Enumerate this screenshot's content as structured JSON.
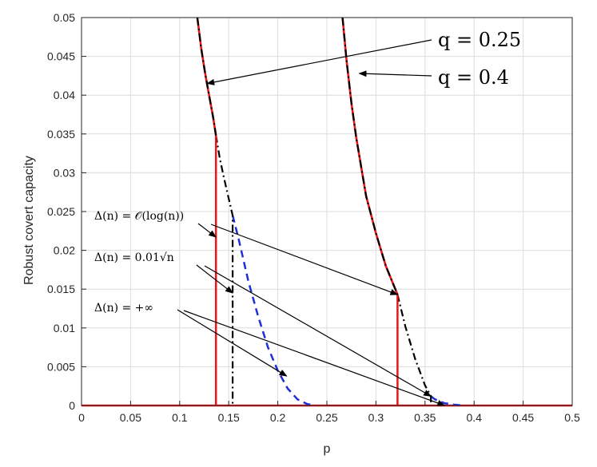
{
  "chart_data": {
    "type": "line",
    "xlabel": "p",
    "ylabel": "Robust covert capacity",
    "xlim": [
      0,
      0.5
    ],
    "ylim": [
      0,
      0.05
    ],
    "grid": true,
    "xticks": [
      "0",
      "0.05",
      "0.1",
      "0.15",
      "0.2",
      "0.25",
      "0.3",
      "0.35",
      "0.4",
      "0.45",
      "0.5"
    ],
    "yticks": [
      "0",
      "0.005",
      "0.01",
      "0.015",
      "0.02",
      "0.025",
      "0.03",
      "0.035",
      "0.04",
      "0.045",
      "0.05"
    ],
    "colors": {
      "red": "#e8171a",
      "black": "#000000",
      "blue": "#1f2fd6",
      "grid": "#dcdcdc",
      "axis": "#262626"
    },
    "series": [
      {
        "values": {
          "common_q025": [
            [
              0.118,
              0.05
            ],
            [
              0.122,
              0.046
            ],
            [
              0.126,
              0.0428
            ],
            [
              0.13,
              0.04
            ],
            [
              0.134,
              0.0372
            ],
            [
              0.137,
              0.0348
            ]
          ],
          "loglog_q025": [
            [
              0.137,
              0.0348
            ],
            [
              0.137,
              0.0
            ]
          ],
          "sqrt_q025": [
            [
              0.137,
              0.0348
            ],
            [
              0.141,
              0.0318
            ],
            [
              0.145,
              0.0294
            ],
            [
              0.149,
              0.0272
            ],
            [
              0.154,
              0.0245
            ],
            [
              0.154,
              0.0
            ]
          ],
          "inf_q025": [
            [
              0.154,
              0.0245
            ],
            [
              0.16,
              0.0215
            ],
            [
              0.17,
              0.016
            ],
            [
              0.18,
              0.0115
            ],
            [
              0.19,
              0.0075
            ],
            [
              0.2,
              0.0045
            ],
            [
              0.21,
              0.0022
            ],
            [
              0.22,
              0.0008
            ],
            [
              0.23,
              0.0002
            ],
            [
              0.238,
              0.0
            ]
          ],
          "common_q04": [
            [
              0.266,
              0.05
            ],
            [
              0.27,
              0.0445
            ],
            [
              0.275,
              0.039
            ],
            [
              0.28,
              0.0345
            ],
            [
              0.29,
              0.027
            ],
            [
              0.3,
              0.0222
            ],
            [
              0.31,
              0.018
            ],
            [
              0.322,
              0.0143
            ]
          ],
          "loglog_q04": [
            [
              0.322,
              0.0143
            ],
            [
              0.322,
              0.0
            ]
          ],
          "sqrt_q04": [
            [
              0.322,
              0.0143
            ],
            [
              0.33,
              0.0102
            ],
            [
              0.34,
              0.006
            ],
            [
              0.35,
              0.0026
            ],
            [
              0.356,
              0.0012
            ],
            [
              0.356,
              0.0
            ]
          ],
          "inf_q04": [
            [
              0.356,
              0.0012
            ],
            [
              0.36,
              0.0008
            ],
            [
              0.37,
              0.0003
            ],
            [
              0.38,
              0.0001
            ],
            [
              0.39,
              0.0
            ]
          ],
          "zero_line": [
            [
              0,
              0
            ],
            [
              0.5,
              0
            ]
          ]
        }
      }
    ],
    "annotations": {
      "q025": "q = 0.25",
      "q04": "q = 0.4",
      "delta_log": "Δ(n) = 𝒪(log(n))",
      "delta_sqrt": "Δ(n) = 0.01√n",
      "delta_inf": "Δ(n) = +∞"
    },
    "arrow_targets": {
      "q025": [
        0.128,
        0.0415
      ],
      "q04": [
        0.283,
        0.0428
      ],
      "log_a": [
        0.137,
        0.0217
      ],
      "log_b": [
        0.322,
        0.0143
      ],
      "sqrt_a": [
        0.154,
        0.0145
      ],
      "sqrt_b": [
        0.356,
        0.0012
      ],
      "inf_a": [
        0.209,
        0.0038
      ],
      "inf_b": [
        0.37,
        0.0
      ]
    }
  }
}
